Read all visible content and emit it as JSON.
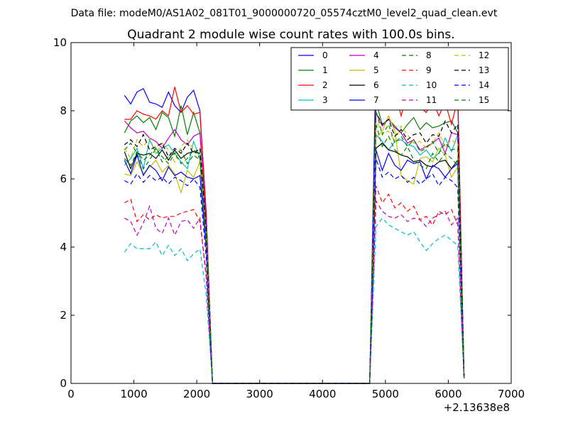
{
  "chart_data": {
    "type": "line",
    "suptitle": "Data file: modeM0/AS1A02_081T01_9000000720_05574cztM0_level2_quad_clean.evt",
    "title": "Quadrant 2 module wise count rates with 100.0s bins.",
    "xlabel": "",
    "ylabel": "",
    "xlim": [
      0,
      7000
    ],
    "ylim": [
      0,
      10
    ],
    "x_ticks": [
      "0",
      "1000",
      "2000",
      "3000",
      "4000",
      "5000",
      "6000",
      "7000"
    ],
    "y_ticks": [
      "0",
      "2",
      "4",
      "6",
      "8",
      "10"
    ],
    "x_offset_label": "+2.13638e8",
    "legend_position": "top-right",
    "x": [
      850,
      950,
      1050,
      1150,
      1250,
      1350,
      1450,
      1550,
      1650,
      1750,
      1850,
      1950,
      2050,
      2150,
      2250,
      4750,
      4850,
      4950,
      5050,
      5150,
      5250,
      5350,
      5450,
      5550,
      5650,
      5750,
      5850,
      5950,
      6050,
      6150,
      6250
    ],
    "series": [
      {
        "name": "0",
        "color": "#0000ff",
        "dash": "solid",
        "values": [
          8.45,
          8.2,
          8.55,
          8.65,
          8.25,
          8.2,
          8.1,
          8.55,
          8.15,
          7.95,
          8.4,
          8.6,
          8.0,
          5.0,
          0,
          0,
          9.6,
          8.95,
          9.2,
          8.55,
          8.85,
          8.6,
          8.95,
          8.35,
          8.35,
          8.15,
          8.6,
          8.2,
          8.5,
          8.55,
          0.2
        ]
      },
      {
        "name": "1",
        "color": "#008000",
        "dash": "solid",
        "values": [
          7.35,
          7.7,
          7.85,
          7.65,
          7.8,
          7.45,
          7.95,
          7.8,
          7.25,
          8.15,
          7.3,
          7.95,
          7.35,
          4.8,
          0,
          0,
          8.25,
          7.6,
          7.75,
          7.55,
          7.35,
          7.6,
          7.8,
          7.45,
          7.65,
          7.5,
          7.55,
          7.65,
          7.7,
          7.35,
          0.2
        ]
      },
      {
        "name": "2",
        "color": "#ff0000",
        "dash": "solid",
        "values": [
          7.75,
          7.75,
          8.0,
          7.9,
          7.85,
          7.75,
          8.0,
          7.85,
          8.7,
          7.95,
          8.15,
          7.9,
          7.95,
          5.0,
          0,
          0,
          8.2,
          8.8,
          8.75,
          8.55,
          7.85,
          8.55,
          8.15,
          8.1,
          7.95,
          8.3,
          7.85,
          8.25,
          7.6,
          8.35,
          0.2
        ]
      },
      {
        "name": "3",
        "color": "#00bfbf",
        "dash": "solid",
        "values": [
          6.4,
          6.6,
          6.9,
          6.3,
          7.15,
          6.75,
          6.9,
          7.0,
          6.75,
          6.5,
          6.3,
          7.1,
          6.6,
          4.3,
          0,
          0,
          7.3,
          7.1,
          6.85,
          7.1,
          7.15,
          7.0,
          6.95,
          6.7,
          6.85,
          6.6,
          6.75,
          7.2,
          6.8,
          7.3,
          0.2
        ]
      },
      {
        "name": "4",
        "color": "#bf00bf",
        "dash": "solid",
        "values": [
          7.7,
          7.5,
          7.35,
          7.4,
          7.2,
          7.1,
          6.9,
          7.2,
          7.45,
          7.15,
          7.0,
          7.25,
          7.35,
          4.7,
          0,
          0,
          7.95,
          7.55,
          7.75,
          7.5,
          7.35,
          7.05,
          7.15,
          6.85,
          6.95,
          7.05,
          7.2,
          6.75,
          7.35,
          7.3,
          0.2
        ]
      },
      {
        "name": "5",
        "color": "#bfbf00",
        "dash": "solid",
        "values": [
          6.15,
          6.1,
          6.5,
          6.15,
          6.35,
          6.55,
          6.2,
          6.4,
          6.15,
          5.6,
          6.25,
          6.05,
          6.5,
          4.1,
          0,
          0,
          7.2,
          7.4,
          7.85,
          7.4,
          6.1,
          5.95,
          5.85,
          6.6,
          6.65,
          6.5,
          6.9,
          6.7,
          6.05,
          6.35,
          0.2
        ]
      },
      {
        "name": "6",
        "color": "#000000",
        "dash": "solid",
        "values": [
          6.8,
          6.3,
          6.75,
          6.7,
          6.75,
          6.6,
          6.85,
          6.55,
          6.85,
          6.6,
          6.75,
          6.8,
          6.75,
          4.4,
          0,
          0,
          6.9,
          7.05,
          6.85,
          6.8,
          6.7,
          6.65,
          6.5,
          6.55,
          6.4,
          6.35,
          6.5,
          6.55,
          6.3,
          6.55,
          0.2
        ]
      },
      {
        "name": "7",
        "color": "#0000ff",
        "dash": "solid",
        "values": [
          6.55,
          6.15,
          6.7,
          6.1,
          6.4,
          6.25,
          5.95,
          6.35,
          6.1,
          6.2,
          6.05,
          6.0,
          6.1,
          4.0,
          0,
          0,
          6.85,
          6.25,
          6.75,
          6.4,
          6.25,
          6.55,
          6.45,
          6.5,
          6.0,
          6.4,
          6.3,
          6.05,
          6.3,
          6.45,
          0.2
        ]
      },
      {
        "name": "8",
        "color": "#008000",
        "dash": "dashed",
        "values": [
          6.85,
          7.05,
          6.75,
          6.3,
          6.55,
          6.9,
          6.65,
          6.45,
          6.75,
          6.85,
          6.45,
          6.7,
          6.55,
          4.2,
          0,
          0,
          7.6,
          6.95,
          7.25,
          6.85,
          6.7,
          6.95,
          6.55,
          6.4,
          6.3,
          6.75,
          6.5,
          6.75,
          6.6,
          6.4,
          0.15
        ]
      },
      {
        "name": "9",
        "color": "#ff0000",
        "dash": "dashed",
        "values": [
          5.3,
          5.4,
          4.75,
          4.95,
          4.8,
          4.95,
          4.85,
          4.9,
          4.9,
          5.0,
          5.05,
          5.1,
          4.75,
          3.2,
          0,
          0,
          5.8,
          5.3,
          5.55,
          5.15,
          5.3,
          5.05,
          5.2,
          4.8,
          4.9,
          4.65,
          5.05,
          4.95,
          5.1,
          4.65,
          0.15
        ]
      },
      {
        "name": "10",
        "color": "#00bfbf",
        "dash": "dashed",
        "values": [
          3.85,
          4.1,
          3.95,
          3.95,
          3.95,
          4.15,
          3.75,
          4.05,
          3.75,
          3.95,
          3.6,
          3.8,
          3.95,
          2.6,
          0,
          0,
          4.6,
          4.85,
          4.65,
          4.55,
          4.45,
          4.35,
          4.45,
          4.15,
          3.9,
          4.1,
          4.25,
          4.35,
          4.2,
          4.05,
          0.15
        ]
      },
      {
        "name": "11",
        "color": "#bf00bf",
        "dash": "dashed",
        "values": [
          4.85,
          4.75,
          4.35,
          4.7,
          5.2,
          4.55,
          4.4,
          4.85,
          4.35,
          4.75,
          4.8,
          4.55,
          4.85,
          3.1,
          0,
          0,
          5.35,
          5.05,
          4.9,
          4.85,
          4.95,
          4.75,
          4.85,
          4.8,
          4.6,
          4.85,
          4.95,
          5.05,
          4.65,
          4.85,
          0.15
        ]
      },
      {
        "name": "12",
        "color": "#bfbf00",
        "dash": "dashed",
        "values": [
          6.9,
          6.6,
          7.15,
          6.95,
          7.2,
          6.75,
          7.05,
          6.85,
          6.5,
          6.95,
          7.15,
          6.85,
          6.8,
          4.4,
          0,
          0,
          7.7,
          7.35,
          7.4,
          7.1,
          7.55,
          7.3,
          7.05,
          7.1,
          6.9,
          7.05,
          7.35,
          6.95,
          7.15,
          7.0,
          0.15
        ]
      },
      {
        "name": "13",
        "color": "#000000",
        "dash": "dashed",
        "values": [
          7.0,
          7.15,
          6.95,
          7.3,
          6.85,
          6.95,
          7.05,
          6.65,
          6.9,
          6.75,
          7.05,
          6.75,
          6.9,
          4.5,
          0,
          0,
          7.95,
          7.6,
          7.75,
          7.25,
          7.45,
          7.15,
          7.3,
          7.35,
          7.05,
          7.3,
          7.25,
          7.7,
          7.35,
          7.6,
          0.15
        ]
      },
      {
        "name": "14",
        "color": "#0000ff",
        "dash": "dashed",
        "values": [
          5.95,
          5.85,
          6.15,
          5.9,
          6.1,
          5.95,
          6.05,
          5.85,
          6.05,
          5.95,
          5.8,
          6.0,
          5.75,
          3.7,
          0,
          0,
          6.6,
          6.05,
          6.2,
          6.0,
          6.1,
          5.9,
          6.05,
          5.85,
          6.0,
          6.15,
          5.8,
          6.05,
          5.95,
          5.75,
          0.15
        ]
      },
      {
        "name": "15",
        "color": "#008000",
        "dash": "dashed",
        "values": [
          6.6,
          6.4,
          6.8,
          6.55,
          6.7,
          6.9,
          6.5,
          6.65,
          6.75,
          6.45,
          6.6,
          6.85,
          6.6,
          4.3,
          0,
          0,
          8.0,
          7.3,
          7.6,
          7.05,
          7.25,
          6.95,
          7.15,
          6.8,
          6.9,
          7.1,
          6.75,
          7.05,
          6.85,
          6.9,
          0.15
        ]
      }
    ]
  }
}
